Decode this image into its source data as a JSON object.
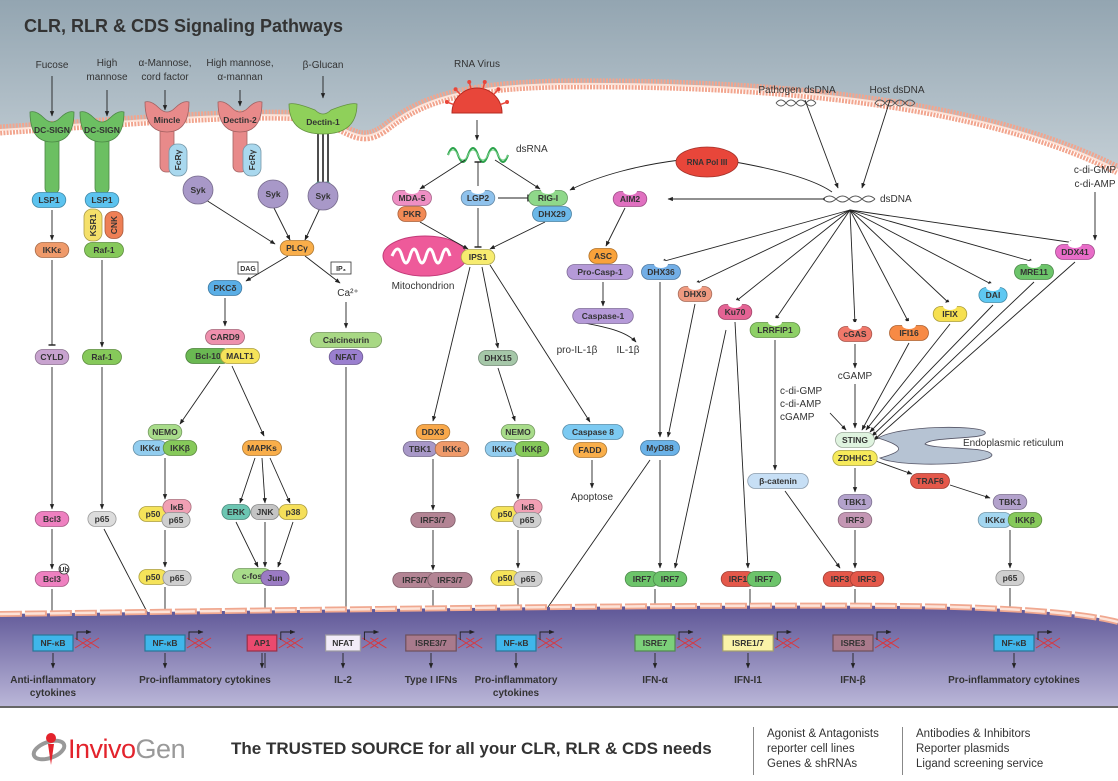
{
  "title": "CLR, RLR & CDS Signaling Pathways",
  "colors": {
    "membrane": "#f2a58e",
    "extracellular": "#a9b7c0",
    "nucleus_top": "#5d5596",
    "nucleus_bottom": "#bab6d8",
    "gene": "#d9363e"
  },
  "nodes": [
    {
      "label": "DC-SIGN",
      "color": "#6cbf62"
    },
    {
      "label": "DC-SIGN",
      "color": "#6cbf62"
    },
    {
      "label": "Mincle",
      "color": "#e88a8a"
    },
    {
      "label": "Dectin-2",
      "color": "#e88a8a"
    },
    {
      "label": "Dectin-1",
      "color": "#8fd05a"
    },
    {
      "label": "LSP1",
      "color": "#5cc3ef"
    },
    {
      "label": "LSP1",
      "color": "#5cc3ef"
    },
    {
      "label": "KSR1",
      "color": "#f5e06a"
    },
    {
      "label": "CNK",
      "color": "#ee7f55"
    },
    {
      "label": "Raf-1",
      "color": "#86c95a"
    },
    {
      "label": "IKKε",
      "color": "#ef9a6a"
    },
    {
      "label": "FcRγ",
      "color": "#a9d8ee"
    },
    {
      "label": "Syk",
      "color": "#a898c8"
    },
    {
      "label": "FcRγ",
      "color": "#a9d8ee"
    },
    {
      "label": "Syk",
      "color": "#a898c8"
    },
    {
      "label": "Syk",
      "color": "#a898c8"
    },
    {
      "label": "PLCγ",
      "color": "#f9ae4a"
    },
    {
      "label": "PKCδ",
      "color": "#5aaee6"
    },
    {
      "label": "CARD9",
      "color": "#ee90ad"
    },
    {
      "label": "Bcl-10",
      "color": "#6ab852"
    },
    {
      "label": "MALT1",
      "color": "#f5e35a"
    },
    {
      "label": "Calcineurin",
      "color": "#a8d884"
    },
    {
      "label": "NFAT",
      "color": "#9a7fcf"
    },
    {
      "label": "CYLD",
      "color": "#c8a3cf"
    },
    {
      "label": "Raf-1",
      "color": "#86c95a"
    },
    {
      "label": "NEMO",
      "color": "#a8dc8a"
    },
    {
      "label": "IKKα",
      "color": "#92cdef"
    },
    {
      "label": "IKKβ",
      "color": "#86c95a"
    },
    {
      "label": "MAPKs",
      "color": "#f9ae4a"
    },
    {
      "label": "ERK",
      "color": "#6cc6b2"
    },
    {
      "label": "JNK",
      "color": "#c4c4c4"
    },
    {
      "label": "p38",
      "color": "#f5df5a"
    },
    {
      "label": "c-fos",
      "color": "#a8dc8a"
    },
    {
      "label": "Jun",
      "color": "#9b7bc4"
    },
    {
      "label": "p50",
      "color": "#f5e35a"
    },
    {
      "label": "IκB",
      "color": "#f1a0b4"
    },
    {
      "label": "p65",
      "color": "#cfcfcf"
    },
    {
      "label": "p50",
      "color": "#f5e35a"
    },
    {
      "label": "p65",
      "color": "#cfcfcf"
    },
    {
      "label": "Bcl3",
      "color": "#ee80c0"
    },
    {
      "label": "Bcl3",
      "color": "#ee80c0"
    },
    {
      "label": "p65",
      "color": "#dcdcdc"
    },
    {
      "label": "MDA-5",
      "color": "#ee8fc4"
    },
    {
      "label": "PKR",
      "color": "#f28a55"
    },
    {
      "label": "LGP2",
      "color": "#8fc2ec"
    },
    {
      "label": "RIG-I",
      "color": "#8fd88a"
    },
    {
      "label": "DHX29",
      "color": "#6bb8e8"
    },
    {
      "label": "IPS1",
      "color": "#f7ec70"
    },
    {
      "label": "RNA Pol III",
      "color": "#e8463a"
    },
    {
      "label": "AIM2",
      "color": "#e070c0"
    },
    {
      "label": "ASC",
      "color": "#f9a23a"
    },
    {
      "label": "Pro-Casp-1",
      "color": "#b59ad8"
    },
    {
      "label": "Caspase-1",
      "color": "#b59ad8"
    },
    {
      "label": "DHX36",
      "color": "#72aee6"
    },
    {
      "label": "DHX9",
      "color": "#ef9a80"
    },
    {
      "label": "Ku70",
      "color": "#e46394"
    },
    {
      "label": "LRRFIP1",
      "color": "#8ed066"
    },
    {
      "label": "cGAS",
      "color": "#f0786a"
    },
    {
      "label": "IFI16",
      "color": "#f78a45"
    },
    {
      "label": "IFIX",
      "color": "#f6e050"
    },
    {
      "label": "DAI",
      "color": "#5ec8f2"
    },
    {
      "label": "MRE11",
      "color": "#6cc46a"
    },
    {
      "label": "DDX41",
      "color": "#e86cc8"
    },
    {
      "label": "STING",
      "color": "#dff3df"
    },
    {
      "label": "ZDHHC1",
      "color": "#f6ea5a"
    },
    {
      "label": "TRAF6",
      "color": "#e4584a"
    },
    {
      "label": "TBK1",
      "color": "#b3a2cc"
    },
    {
      "label": "IRF3",
      "color": "#c497b4"
    },
    {
      "label": "TBK1",
      "color": "#b3a2cc"
    },
    {
      "label": "IKKα",
      "color": "#a3d6f0"
    },
    {
      "label": "IKKβ",
      "color": "#86c95a"
    },
    {
      "label": "β-catenin",
      "color": "#c7dff5"
    },
    {
      "label": "MyD88",
      "color": "#6ab2e8"
    },
    {
      "label": "DHX15",
      "color": "#a5c7a8"
    },
    {
      "label": "DDX3",
      "color": "#f8a84a"
    },
    {
      "label": "TBK1",
      "color": "#a898c8"
    },
    {
      "label": "IKKε",
      "color": "#ef9a6a"
    },
    {
      "label": "NEMO",
      "color": "#a8dc8a"
    },
    {
      "label": "IKKα",
      "color": "#92cdef"
    },
    {
      "label": "IKKβ",
      "color": "#86c95a"
    },
    {
      "label": "Caspase 8",
      "color": "#7ccaf2"
    },
    {
      "label": "FADD",
      "color": "#f9ae4a"
    },
    {
      "label": "IRF3/7",
      "color": "#b38494"
    },
    {
      "label": "IRF3/7",
      "color": "#b38494"
    },
    {
      "label": "IRF3/7",
      "color": "#b38494"
    },
    {
      "label": "p50",
      "color": "#f5e35a"
    },
    {
      "label": "IκB",
      "color": "#f1a0b4"
    },
    {
      "label": "p65",
      "color": "#cfcfcf"
    },
    {
      "label": "p50",
      "color": "#f5e35a"
    },
    {
      "label": "p65",
      "color": "#cfcfcf"
    },
    {
      "label": "IRF7",
      "color": "#6cc46a"
    },
    {
      "label": "IRF7",
      "color": "#6cc46a"
    },
    {
      "label": "IRF1",
      "color": "#e4584a"
    },
    {
      "label": "IRF7",
      "color": "#6cc46a"
    },
    {
      "label": "IRF3",
      "color": "#e4584a"
    },
    {
      "label": "IRF3",
      "color": "#e4584a"
    },
    {
      "label": "p65",
      "color": "#cfcfcf"
    }
  ],
  "labels": [
    {
      "text": "Fucose"
    },
    {
      "text": "High"
    },
    {
      "text": "mannose"
    },
    {
      "text": "α-Mannose,"
    },
    {
      "text": "cord factor"
    },
    {
      "text": "High mannose,"
    },
    {
      "text": "α-mannan"
    },
    {
      "text": "β-Glucan"
    },
    {
      "text": "RNA Virus"
    },
    {
      "text": "dsRNA"
    },
    {
      "text": "Pathogen dsDNA"
    },
    {
      "text": "Host dsDNA"
    },
    {
      "text": "dsDNA"
    },
    {
      "text": "c-di-GMP"
    },
    {
      "text": "c-di-AMP"
    },
    {
      "text": "Mitochondrion"
    },
    {
      "text": "DAG"
    },
    {
      "text": "IP₃"
    },
    {
      "text": "Ca²⁺"
    },
    {
      "text": "pro-IL-1β"
    },
    {
      "text": "IL-1β"
    },
    {
      "text": "Apoptose"
    },
    {
      "text": "cGAMP"
    },
    {
      "text": "c-di-GMP"
    },
    {
      "text": "c-di-AMP"
    },
    {
      "text": "cGAMP"
    },
    {
      "text": "Endoplasmic reticulum"
    },
    {
      "text": "Ub"
    }
  ],
  "nucleus": {
    "factors": [
      {
        "label": "NF-κB",
        "color": "#3fb6ea",
        "output": [
          "Anti-inflammatory",
          "cytokines"
        ]
      },
      {
        "label": "NF-κB",
        "color": "#3fb6ea",
        "output": [
          "Pro-inflammatory cytokines"
        ]
      },
      {
        "label": "AP1",
        "color": "#ea4a6e",
        "output": []
      },
      {
        "label": "NFAT",
        "color": "#f2ecf8",
        "output": [
          "IL-2"
        ]
      },
      {
        "label": "ISRE3/7",
        "color": "#a97a8c",
        "output": [
          "Type I IFNs"
        ]
      },
      {
        "label": "NF-κB",
        "color": "#3fb6ea",
        "output": [
          "Pro-inflammatory",
          "cytokines"
        ]
      },
      {
        "label": "ISRE7",
        "color": "#7cd07a",
        "output": [
          "IFN-α"
        ]
      },
      {
        "label": "ISRE1/7",
        "color": "#faf3a8",
        "output": [
          "IFN-I1"
        ]
      },
      {
        "label": "ISRE3",
        "color": "#a97a8c",
        "output": [
          "IFN-β"
        ]
      },
      {
        "label": "NF-κB",
        "color": "#3fb6ea",
        "output": [
          "Pro-inflammatory cytokines"
        ]
      }
    ]
  },
  "footer": {
    "logo_text": "InvivoGen",
    "logo_part1": "Invivo",
    "logo_part2": "Gen",
    "tagline": "The TRUSTED SOURCE for all your CLR, RLR & CDS needs",
    "col1": [
      "Agonist & Antagonists",
      "reporter cell lines",
      "Genes & shRNAs"
    ],
    "col2": [
      "Antibodies & Inhibitors",
      "Reporter plasmids",
      "Ligand screening service"
    ]
  }
}
